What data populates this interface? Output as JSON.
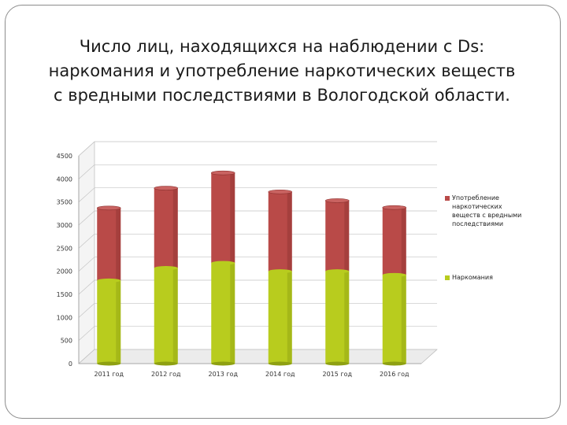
{
  "title_lines": [
    "Число лиц, находящихся на наблюдении с Ds:",
    "наркомания и употребление наркотических веществ",
    "с вредными последствиями в Вологодской области."
  ],
  "colors": {
    "upper": "#b94a48",
    "upper_dark": "#8f3331",
    "lower": "#b8cc1e",
    "lower_dark": "#8ea012"
  },
  "chart_data": {
    "type": "bar",
    "stacked": true,
    "categories": [
      "2011 год",
      "2012 год",
      "2013 год",
      "2014 год",
      "2015 год",
      "2016 год"
    ],
    "series": [
      {
        "name": "Наркомания",
        "values": [
          1800,
          2070,
          2180,
          2000,
          2000,
          1920
        ]
      },
      {
        "name": "Употребление наркотических веществ с вредными последствиями",
        "values": [
          1570,
          1730,
          1950,
          1720,
          1530,
          1460
        ]
      }
    ],
    "yticks": [
      "0",
      "500",
      "1000",
      "1500",
      "2000",
      "2500",
      "3000",
      "3500",
      "4000",
      "4500"
    ],
    "ylim": [
      0,
      4500
    ],
    "grid": true,
    "legend_position": "right"
  }
}
